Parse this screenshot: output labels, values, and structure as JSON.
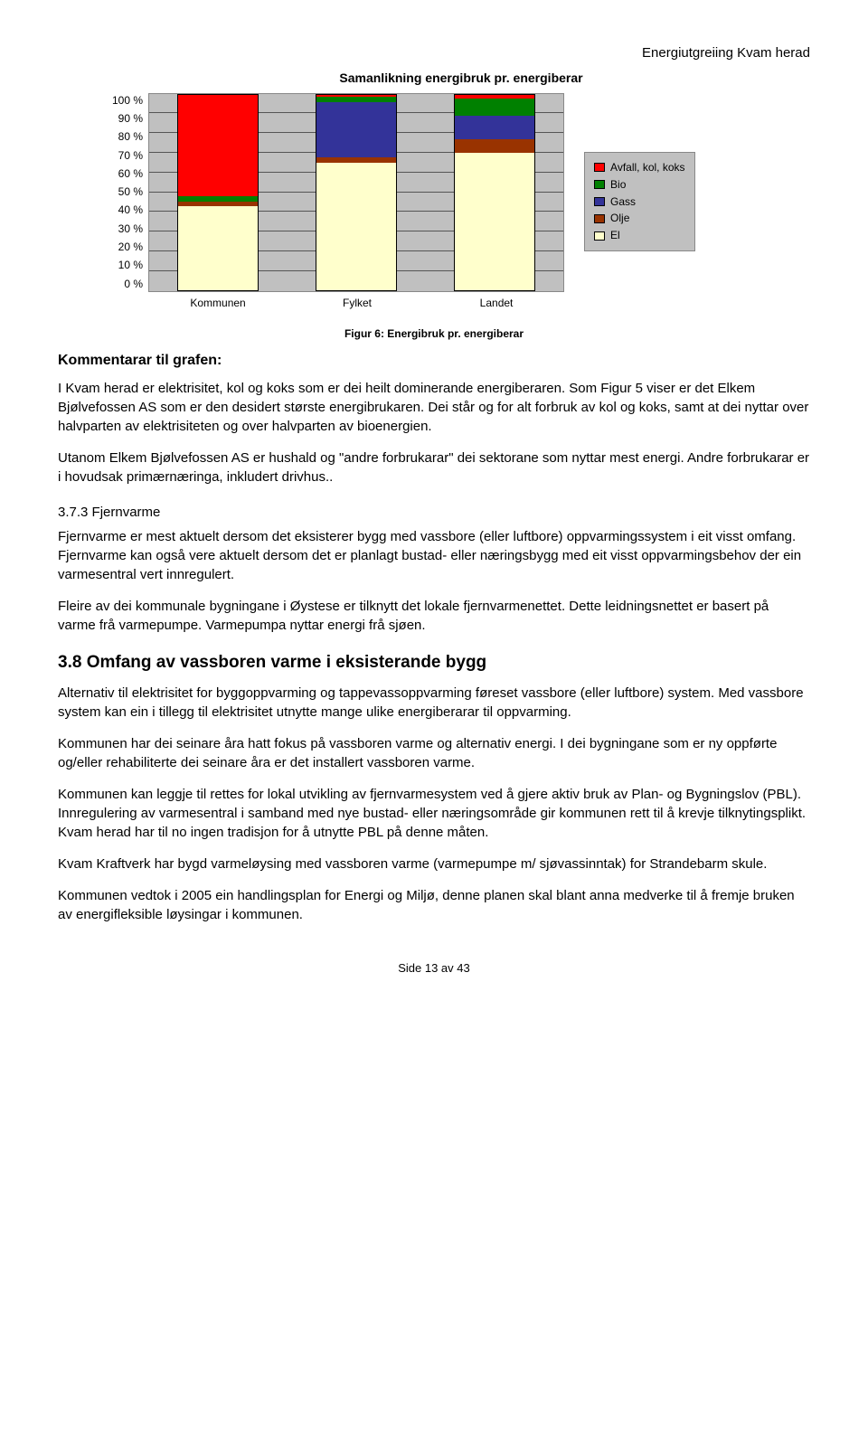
{
  "header": {
    "doc_title": "Energiutgreiing Kvam herad"
  },
  "chart": {
    "type": "stacked-bar",
    "title": "Samanlikning energibruk pr. energiberar",
    "y_ticks": [
      "100 %",
      "90 %",
      "80 %",
      "70 %",
      "60 %",
      "50 %",
      "40 %",
      "30 %",
      "20 %",
      "10 %",
      "0 %"
    ],
    "ylim": [
      0,
      100
    ],
    "grid_step": 10,
    "bg_color": "#c0c0c0",
    "grid_color": "#555555",
    "bar_border": "#000000",
    "categories": [
      "Kommunen",
      "Fylket",
      "Landet"
    ],
    "series": [
      {
        "name": "El",
        "color": "#ffffcc"
      },
      {
        "name": "Olje",
        "color": "#993300"
      },
      {
        "name": "Gass",
        "color": "#333399"
      },
      {
        "name": "Bio",
        "color": "#008000"
      },
      {
        "name": "Avfall, kol, koks",
        "color": "#ff0000"
      }
    ],
    "data": {
      "Kommunen": {
        "El": 43,
        "Olje": 2,
        "Gass": 0,
        "Bio": 3,
        "Avfall, kol, koks": 52
      },
      "Fylket": {
        "El": 65,
        "Olje": 3,
        "Gass": 28,
        "Bio": 3,
        "Avfall, kol, koks": 1
      },
      "Landet": {
        "El": 70,
        "Olje": 7,
        "Gass": 12,
        "Bio": 9,
        "Avfall, kol, koks": 2
      }
    },
    "legend_order": [
      "Avfall, kol, koks",
      "Bio",
      "Gass",
      "Olje",
      "El"
    ]
  },
  "figure_caption": "Figur 6: Energibruk pr. energiberar",
  "body": {
    "comment_heading": "Kommentarar til grafen:",
    "p1": "I Kvam herad er elektrisitet, kol og koks som er dei heilt dominerande energiberaren. Som Figur 5 viser er det Elkem Bjølvefossen AS som er den desidert største energibrukaren. Dei står og for alt forbruk av kol og koks, samt at dei nyttar over halvparten av elektrisiteten og over halvparten av bioenergien.",
    "p2": "Utanom Elkem Bjølvefossen AS er hushald og \"andre forbrukarar\" dei sektorane som nyttar mest energi. Andre forbrukarar er i hovudsak primærnæringa, inkludert drivhus..",
    "sec373_num": "3.7.3 Fjernvarme",
    "p3": "Fjernvarme er mest aktuelt dersom det eksisterer bygg med vassbore (eller luftbore) oppvarmingssystem i eit visst omfang. Fjernvarme kan også vere aktuelt dersom det er planlagt bustad- eller næringsbygg med eit visst oppvarmingsbehov der ein varmesentral vert innregulert.",
    "p4": "Fleire av dei kommunale bygningane i Øystese er tilknytt det lokale fjernvarmenettet. Dette leidningsnettet er basert på varme frå varmepumpe. Varmepumpa nyttar energi frå sjøen.",
    "sec38_heading": "3.8 Omfang av vassboren varme i eksisterande bygg",
    "p5": "Alternativ til elektrisitet for byggoppvarming og tappevassoppvarming føreset vassbore (eller luftbore) system. Med vassbore system kan ein i tillegg til elektrisitet utnytte mange ulike energiberarar til oppvarming.",
    "p6": "Kommunen har dei seinare åra hatt fokus på vassboren varme og alternativ energi. I dei bygningane som er ny oppførte og/eller rehabiliterte dei seinare åra er det installert vassboren varme.",
    "p7": "Kommunen kan leggje til rettes for lokal utvikling av fjernvarmesystem ved å gjere aktiv bruk av Plan- og Bygningslov (PBL). Innregulering av varmesentral i samband med nye bustad- eller næringsområde gir kommunen rett til å krevje tilknytingsplikt. Kvam herad har til no ingen tradisjon for å utnytte PBL på denne måten.",
    "p8": "Kvam Kraftverk har bygd varmeløysing med vassboren varme (varmepumpe m/ sjøvassinntak) for Strandebarm skule.",
    "p9": "Kommunen vedtok i 2005 ein handlingsplan for Energi og Miljø, denne planen skal blant anna medverke til å fremje bruken av energifleksible løysingar i kommunen."
  },
  "footer": {
    "page": "Side 13 av 43"
  }
}
